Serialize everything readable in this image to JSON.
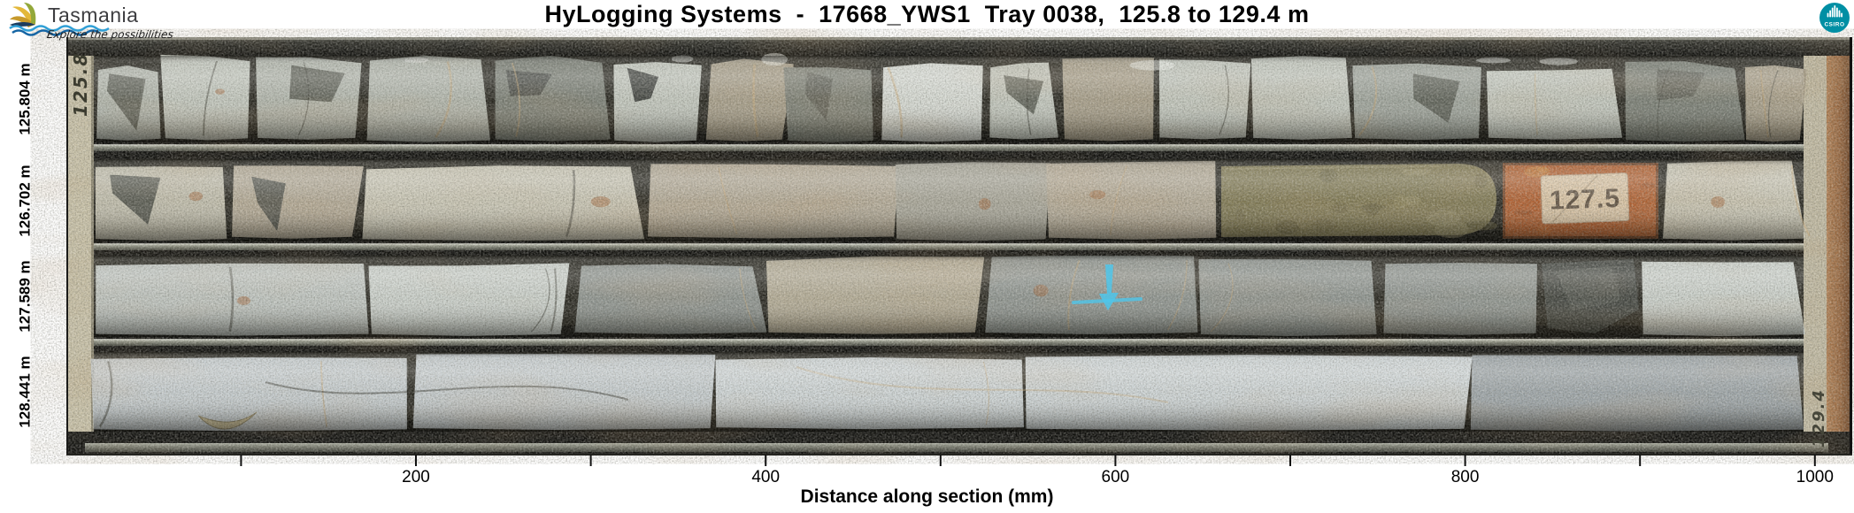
{
  "header": {
    "title": "HyLogging Systems  -  17668_YWS1  Tray 0038,  125.8 to 129.4 m",
    "tasmania": {
      "name": "Tasmania",
      "tagline": "Explore the possibilities"
    },
    "csiro": {
      "label": "CSIRO"
    }
  },
  "depth_labels": [
    "125.804 m",
    "126.702 m",
    "127.589 m",
    "128.441 m"
  ],
  "axis": {
    "title": "Distance along section (mm)",
    "major_ticks": [
      200,
      400,
      600,
      800,
      1000
    ],
    "minor_ticks": [
      100,
      300,
      500,
      700,
      900
    ]
  },
  "tray": {
    "handwritten_depth_start": "125.8",
    "handwritten_depth_end": "129.4",
    "depth_block_label": "127.5"
  },
  "colors": {
    "cyan_mark": "#4fc6ea",
    "csiro_teal": "#008fa4",
    "tasmania_blue": "#2f9fd6",
    "depth_block_orange": "#ad5a2a"
  },
  "chart_data": {
    "type": "table",
    "title": "HyLogging Systems  -  17668_YWS1  Tray 0038,  125.8 to 129.4 m",
    "xlabel": "Distance along section (mm)",
    "xlim": [
      0,
      1020
    ],
    "x_major_ticks": [
      200,
      400,
      600,
      800,
      1000
    ],
    "x_minor_ticks": [
      100,
      300,
      500,
      700,
      900
    ],
    "rows": [
      {
        "row": 1,
        "start_depth_m": 125.804
      },
      {
        "row": 2,
        "start_depth_m": 126.702
      },
      {
        "row": 3,
        "start_depth_m": 127.589
      },
      {
        "row": 4,
        "start_depth_m": 128.441
      }
    ],
    "depth_range_m": [
      125.8,
      129.4
    ],
    "tray_annotations": [
      {
        "text": "125.8",
        "location": "handwritten on left rail, row 1"
      },
      {
        "text": "127.5",
        "location": "orange depth block in row 2, ~840 mm"
      },
      {
        "text": "129.4",
        "location": "handwritten on right rail, row 4"
      }
    ]
  }
}
